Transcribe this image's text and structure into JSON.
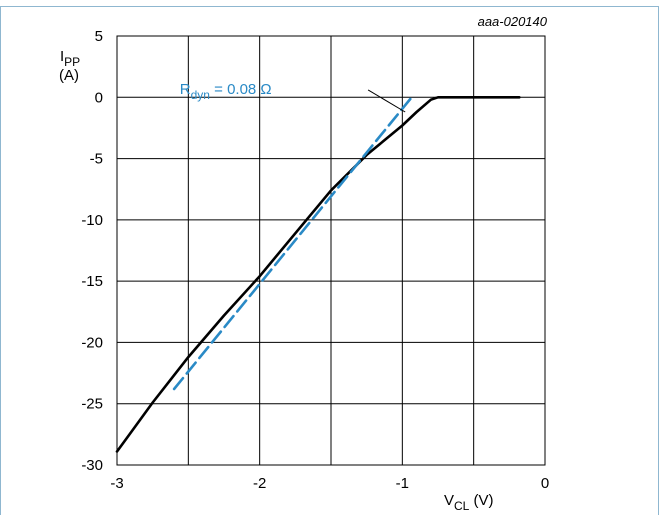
{
  "figure_ref": "aaa-020140",
  "chart_data": {
    "type": "line",
    "xlabel_main": "V",
    "xlabel_sub": "CL",
    "xlabel_unit": " (V)",
    "ylabel_main": "I",
    "ylabel_sub": "PP",
    "ylabel_unit": "(A)",
    "xlim": [
      -3,
      0
    ],
    "ylim": [
      -30,
      5
    ],
    "x_ticks": [
      -3,
      -2,
      -1,
      0
    ],
    "x_tick_labels": [
      "-3",
      "-2",
      "-1",
      "0"
    ],
    "y_ticks": [
      5,
      0,
      -5,
      -10,
      -15,
      -20,
      -25,
      -30
    ],
    "y_tick_labels": [
      "5",
      "0",
      "-5",
      "-10",
      "-15",
      "-20",
      "-25",
      "-30"
    ],
    "x_grid": [
      -3,
      -2.5,
      -2,
      -1.5,
      -1,
      -0.5,
      0
    ],
    "y_grid": [
      5,
      0,
      -5,
      -10,
      -15,
      -20,
      -25,
      -30
    ],
    "grid": true,
    "series": [
      {
        "style": "solid",
        "color": "#000000",
        "x": [
          -3.0,
          -2.75,
          -2.5,
          -2.25,
          -2.0,
          -1.75,
          -1.5,
          -1.25,
          -1.0,
          -0.9,
          -0.8,
          -0.75,
          -0.7,
          -0.5,
          -0.3,
          -0.18
        ],
        "y": [
          -28.9,
          -24.9,
          -21.2,
          -17.8,
          -14.6,
          -11.1,
          -7.6,
          -4.7,
          -2.3,
          -1.2,
          -0.2,
          0.0,
          0.0,
          0.0,
          0.0,
          0.0
        ]
      },
      {
        "style": "dashed",
        "color": "#2a8ac6",
        "x": [
          -2.6,
          -0.92
        ],
        "y": [
          -23.8,
          0.2
        ]
      }
    ],
    "annotation": {
      "text_main": "R",
      "text_sub": "dyn",
      "text_rest": " = 0.08 Ω",
      "color": "#2a8ac6"
    }
  }
}
